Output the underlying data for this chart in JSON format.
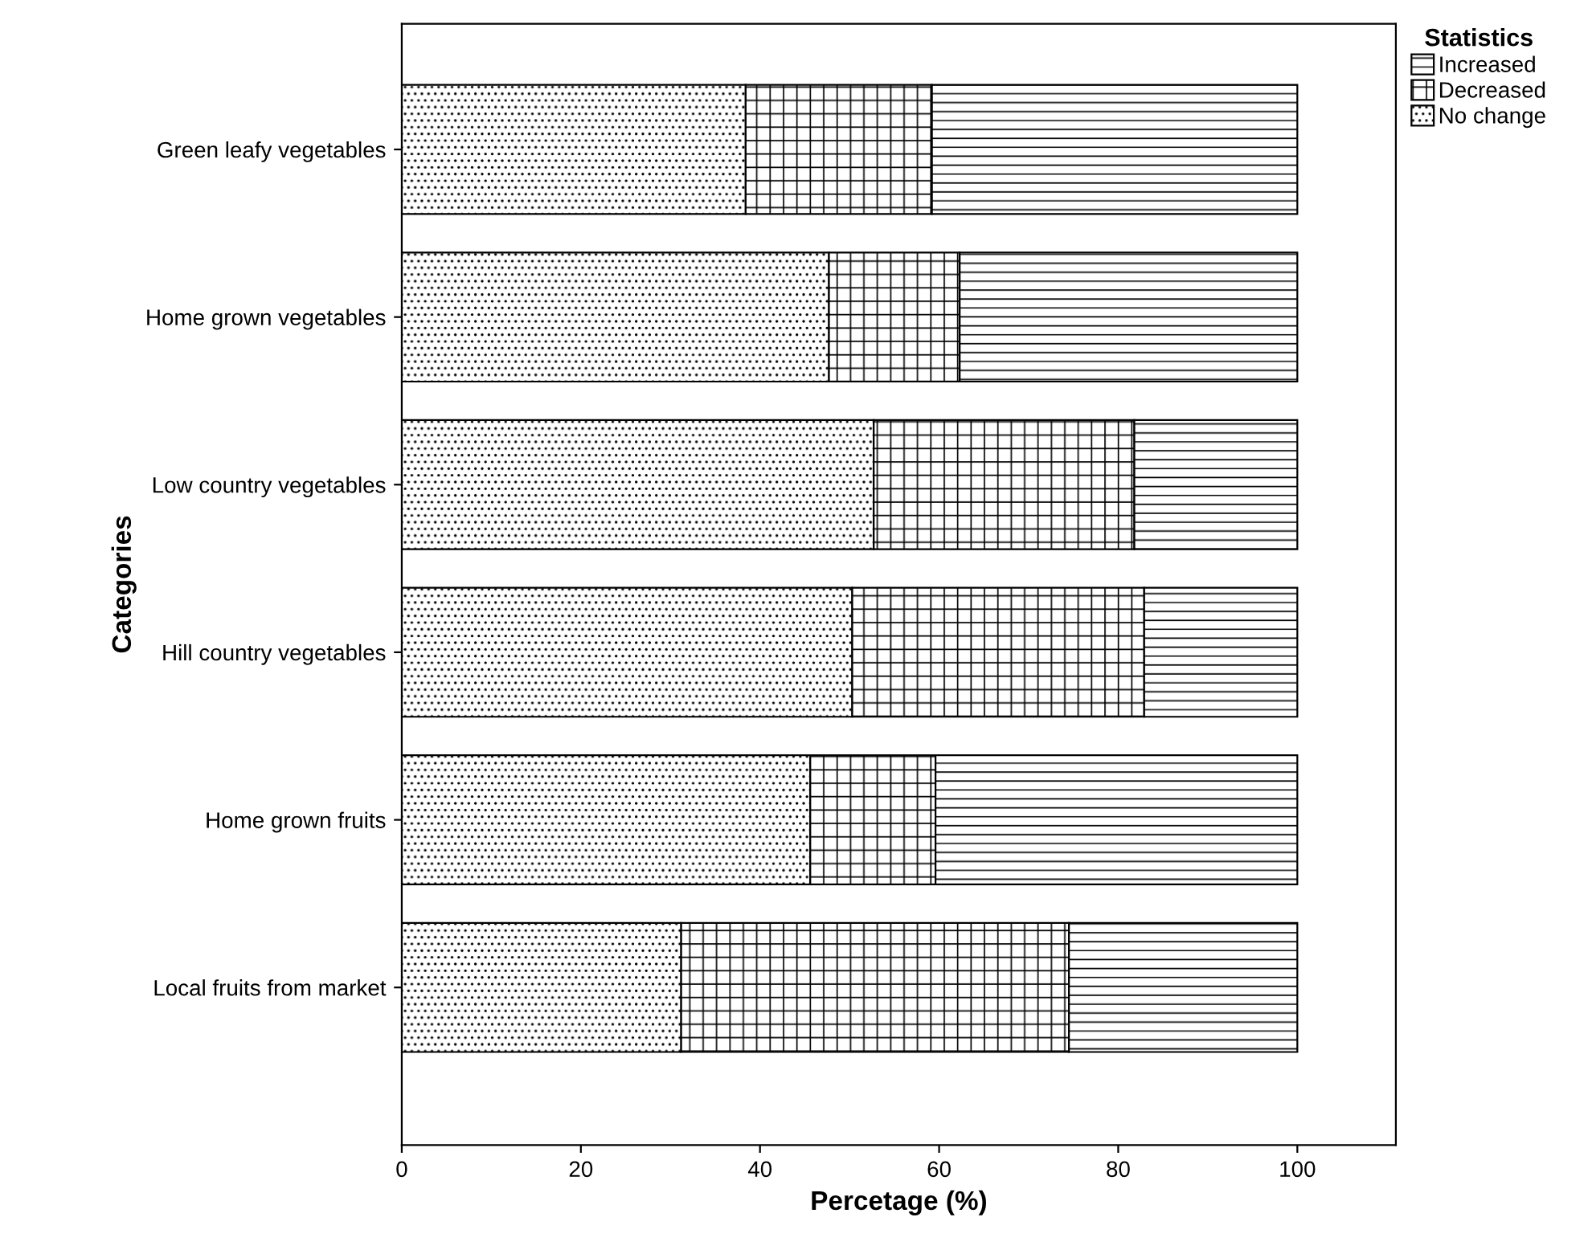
{
  "chart_data": {
    "type": "bar",
    "orientation": "horizontal",
    "stacked": true,
    "categories": [
      "Green leafy vegetables",
      "Home grown vegetables",
      "Low country vegetables",
      "Hill country vegetables",
      "Home grown fruits",
      "Local fruits from market"
    ],
    "series": [
      {
        "name": "No change",
        "color": "#000000",
        "values": [
          38.4,
          47.7,
          52.7,
          50.3,
          45.6,
          31.2
        ]
      },
      {
        "name": "Decreased",
        "color": "#000000",
        "values": [
          20.8,
          14.6,
          29.1,
          32.6,
          14.0,
          43.3
        ]
      },
      {
        "name": "Increased",
        "color": "#000000",
        "values": [
          40.8,
          37.7,
          18.2,
          17.1,
          40.4,
          25.5
        ]
      }
    ],
    "xlim": [
      0,
      111
    ],
    "xticks": [
      0,
      20,
      40,
      60,
      80,
      100
    ],
    "xlabel": "Percetage (%)",
    "ylabel": "Categories",
    "legend_title": "Statistics",
    "legend": "top right",
    "grid": false
  }
}
